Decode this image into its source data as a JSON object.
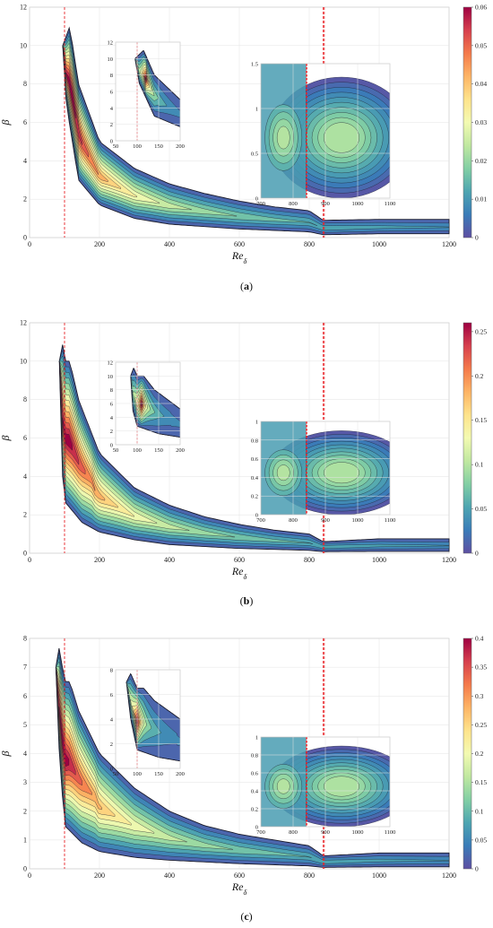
{
  "chart_data": [
    {
      "type": "contour",
      "panel": "(a)",
      "xlabel": "Re",
      "xlabel_sub": "δ",
      "ylabel": "β",
      "xlim": [
        0,
        1200
      ],
      "ylim": [
        0,
        12
      ],
      "xticks": [
        "0",
        "200",
        "400",
        "600",
        "800",
        "1000",
        "1200"
      ],
      "yticks": [
        "0",
        "2",
        "4",
        "6",
        "8",
        "10",
        "12"
      ],
      "colorbar": {
        "range": [
          0,
          0.06
        ],
        "ticks": [
          "0",
          "0.01",
          "0.02",
          "0.03",
          "0.04",
          "0.05",
          "0.06"
        ]
      },
      "dashed_lines_x": [
        100,
        840,
        843
      ],
      "peak": {
        "x": 120,
        "y": 7.5,
        "value": 0.06
      },
      "upper_neutral_curve": [
        [
          95,
          10
        ],
        [
          115,
          11
        ],
        [
          140,
          8
        ],
        [
          200,
          5
        ],
        [
          300,
          3.6
        ],
        [
          400,
          2.8
        ],
        [
          500,
          2.3
        ],
        [
          600,
          1.9
        ],
        [
          700,
          1.6
        ],
        [
          800,
          1.4
        ],
        [
          840,
          0.9
        ],
        [
          1000,
          0.95
        ],
        [
          1200,
          0.95
        ]
      ],
      "lower_neutral_curve": [
        [
          95,
          10
        ],
        [
          105,
          7
        ],
        [
          140,
          3
        ],
        [
          200,
          1.7
        ],
        [
          300,
          1
        ],
        [
          400,
          0.7
        ],
        [
          600,
          0.45
        ],
        [
          800,
          0.3
        ],
        [
          840,
          0.15
        ],
        [
          1000,
          0.2
        ],
        [
          1200,
          0.2
        ]
      ],
      "insets": [
        {
          "xlim": [
            50,
            200
          ],
          "ylim": [
            0,
            12
          ],
          "xticks": [
            "50",
            "100",
            "150",
            "200"
          ],
          "yticks": [
            "0",
            "2",
            "4",
            "6",
            "8",
            "10",
            "12"
          ]
        },
        {
          "xlim": [
            700,
            1100
          ],
          "ylim": [
            0,
            1.5
          ],
          "xticks": [
            "700",
            "800",
            "900",
            "1000",
            "1100"
          ],
          "yticks": [
            "0",
            "0.5",
            "1",
            "1.5"
          ]
        }
      ]
    },
    {
      "type": "contour",
      "panel": "(b)",
      "xlabel": "Re",
      "xlabel_sub": "δ",
      "ylabel": "β",
      "xlim": [
        0,
        1200
      ],
      "ylim": [
        0,
        12
      ],
      "xticks": [
        "0",
        "200",
        "400",
        "600",
        "800",
        "1000",
        "1200"
      ],
      "yticks": [
        "0",
        "2",
        "4",
        "6",
        "8",
        "10",
        "12"
      ],
      "colorbar": {
        "range": [
          0,
          0.26
        ],
        "ticks": [
          "0",
          "0.05",
          "0.1",
          "0.15",
          "0.2",
          "0.25"
        ]
      },
      "dashed_lines_x": [
        100,
        840,
        843
      ],
      "peak": {
        "x": 110,
        "y": 6.2,
        "value": 0.26
      },
      "upper_neutral_curve": [
        [
          85,
          10
        ],
        [
          92,
          11.2
        ],
        [
          100,
          10
        ],
        [
          115,
          10
        ],
        [
          140,
          8
        ],
        [
          200,
          5.2
        ],
        [
          300,
          3.4
        ],
        [
          400,
          2.5
        ],
        [
          500,
          1.9
        ],
        [
          600,
          1.5
        ],
        [
          700,
          1.2
        ],
        [
          800,
          1
        ],
        [
          840,
          0.6
        ],
        [
          1000,
          0.75
        ],
        [
          1200,
          0.75
        ]
      ],
      "lower_neutral_curve": [
        [
          85,
          10
        ],
        [
          90,
          5
        ],
        [
          100,
          2.7
        ],
        [
          150,
          1.6
        ],
        [
          200,
          1.1
        ],
        [
          300,
          0.7
        ],
        [
          400,
          0.45
        ],
        [
          600,
          0.25
        ],
        [
          800,
          0.15
        ],
        [
          840,
          0.08
        ],
        [
          1000,
          0.1
        ],
        [
          1200,
          0.1
        ]
      ],
      "insets": [
        {
          "xlim": [
            50,
            200
          ],
          "ylim": [
            0,
            12
          ],
          "xticks": [
            "50",
            "100",
            "150",
            "200"
          ],
          "yticks": [
            "0",
            "2",
            "4",
            "6",
            "8",
            "10",
            "12"
          ]
        },
        {
          "xlim": [
            700,
            1100
          ],
          "ylim": [
            0,
            1
          ],
          "xticks": [
            "700",
            "800",
            "900",
            "1000",
            "1100"
          ],
          "yticks": [
            "0",
            "0.2",
            "0.4",
            "0.6",
            "0.8",
            "1"
          ]
        }
      ]
    },
    {
      "type": "contour",
      "panel": "(c)",
      "xlabel": "Re",
      "xlabel_sub": "δ",
      "ylabel": "β",
      "xlim": [
        0,
        1200
      ],
      "ylim": [
        0,
        8
      ],
      "xticks": [
        "0",
        "200",
        "400",
        "600",
        "800",
        "1000",
        "1200"
      ],
      "yticks": [
        "0",
        "1",
        "2",
        "3",
        "4",
        "5",
        "6",
        "7",
        "8"
      ],
      "colorbar": {
        "range": [
          0,
          0.4
        ],
        "ticks": [
          "0",
          "0.05",
          "0.1",
          "0.15",
          "0.2",
          "0.25",
          "0.3",
          "0.35",
          "0.4"
        ]
      },
      "dashed_lines_x": [
        100,
        840,
        843
      ],
      "peak": {
        "x": 100,
        "y": 4.2,
        "value": 0.4
      },
      "upper_neutral_curve": [
        [
          75,
          7
        ],
        [
          85,
          7.7
        ],
        [
          100,
          6.5
        ],
        [
          115,
          6.5
        ],
        [
          140,
          5.5
        ],
        [
          200,
          4
        ],
        [
          300,
          2.8
        ],
        [
          400,
          2
        ],
        [
          500,
          1.5
        ],
        [
          600,
          1.2
        ],
        [
          700,
          1
        ],
        [
          800,
          0.8
        ],
        [
          840,
          0.45
        ],
        [
          1000,
          0.55
        ],
        [
          1200,
          0.55
        ]
      ],
      "lower_neutral_curve": [
        [
          75,
          7
        ],
        [
          85,
          4
        ],
        [
          100,
          1.5
        ],
        [
          150,
          0.9
        ],
        [
          200,
          0.6
        ],
        [
          300,
          0.4
        ],
        [
          400,
          0.3
        ],
        [
          600,
          0.18
        ],
        [
          800,
          0.1
        ],
        [
          840,
          0.05
        ],
        [
          1000,
          0.07
        ],
        [
          1200,
          0.07
        ]
      ],
      "insets": [
        {
          "xlim": [
            50,
            200
          ],
          "ylim": [
            0,
            8
          ],
          "xticks": [
            "50",
            "100",
            "150",
            "200"
          ],
          "yticks": [
            "0",
            "2",
            "4",
            "6",
            "8"
          ]
        },
        {
          "xlim": [
            700,
            1100
          ],
          "ylim": [
            0,
            1
          ],
          "xticks": [
            "700",
            "800",
            "900",
            "1000",
            "1100"
          ],
          "yticks": [
            "0",
            "0.2",
            "0.4",
            "0.6",
            "0.8",
            "1"
          ]
        }
      ]
    }
  ]
}
